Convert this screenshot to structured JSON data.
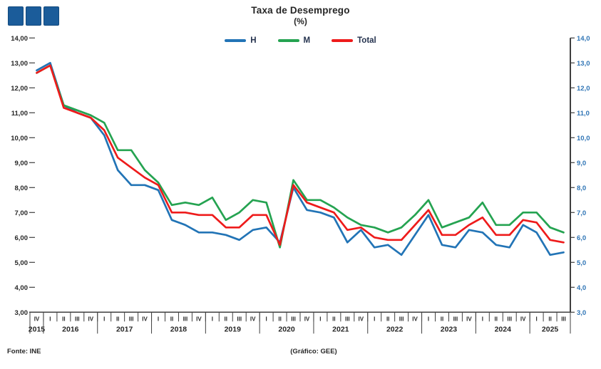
{
  "header": {
    "title": "Taxa de Desemprego",
    "subtitle": "(%)"
  },
  "legend": {
    "items": [
      {
        "label": "H",
        "color": "#2274b6"
      },
      {
        "label": "M",
        "color": "#25a351"
      },
      {
        "label": "Total",
        "color": "#ee1b1b"
      }
    ]
  },
  "footer": {
    "source": "Fonte: INE",
    "credit": "(Gráfico: GEE)"
  },
  "colors": {
    "logo_blue": "#1b5c9a",
    "axis": "#3f3f3f",
    "axis_text": "#262626",
    "right_axis_text": "#2e74b5",
    "series_h": "#2274b6",
    "series_m": "#25a351",
    "series_total": "#ee1b1b"
  },
  "chart_data": {
    "type": "line",
    "title": "Taxa de Desemprego",
    "subtitle": "(%)",
    "legend_position": "top",
    "grid": false,
    "ylim": [
      3,
      14
    ],
    "y_tick_step": 1,
    "y_ticks": [
      14,
      13,
      12,
      11,
      10,
      9,
      8,
      7,
      6,
      5,
      4,
      3
    ],
    "y_tick_labels_left": [
      "14,00",
      "13,00",
      "12,00",
      "11,00",
      "10,00",
      "9,00",
      "8,00",
      "7,00",
      "6,00",
      "5,00",
      "4,00",
      "3,00"
    ],
    "y_tick_labels_right": [
      "14,0",
      "13,0",
      "12,0",
      "11,0",
      "10,0",
      "9,0",
      "8,0",
      "7,0",
      "6,0",
      "5,0",
      "4,0",
      "3,0"
    ],
    "x_year_groups": [
      {
        "year": "2015",
        "quarters": [
          "IV"
        ]
      },
      {
        "year": "2016",
        "quarters": [
          "I",
          "II",
          "III",
          "IV"
        ]
      },
      {
        "year": "2017",
        "quarters": [
          "I",
          "II",
          "III",
          "IV"
        ]
      },
      {
        "year": "2018",
        "quarters": [
          "I",
          "II",
          "III",
          "IV"
        ]
      },
      {
        "year": "2019",
        "quarters": [
          "I",
          "II",
          "III",
          "IV"
        ]
      },
      {
        "year": "2020",
        "quarters": [
          "I",
          "II",
          "III",
          "IV"
        ]
      },
      {
        "year": "2021",
        "quarters": [
          "I",
          "II",
          "III",
          "IV"
        ]
      },
      {
        "year": "2022",
        "quarters": [
          "I",
          "II",
          "III",
          "IV"
        ]
      },
      {
        "year": "2023",
        "quarters": [
          "I",
          "II",
          "III",
          "IV"
        ]
      },
      {
        "year": "2024",
        "quarters": [
          "I",
          "II",
          "III",
          "IV"
        ]
      },
      {
        "year": "2025",
        "quarters": [
          "I",
          "II",
          "III"
        ]
      }
    ],
    "series": [
      {
        "name": "H",
        "color": "#2274b6",
        "values": [
          12.7,
          13.0,
          11.3,
          11.0,
          10.8,
          10.1,
          8.7,
          8.1,
          8.1,
          7.9,
          6.7,
          6.5,
          6.2,
          6.2,
          6.1,
          5.9,
          6.3,
          6.4,
          5.8,
          8.0,
          7.1,
          7.0,
          6.8,
          5.8,
          6.3,
          5.6,
          5.7,
          5.3,
          6.1,
          6.9,
          5.7,
          5.6,
          6.3,
          6.2,
          5.7,
          5.6,
          6.5,
          6.2,
          5.3,
          5.4
        ]
      },
      {
        "name": "M",
        "color": "#25a351",
        "values": [
          12.6,
          12.9,
          11.3,
          11.1,
          10.9,
          10.6,
          9.5,
          9.5,
          8.7,
          8.2,
          7.3,
          7.4,
          7.3,
          7.6,
          6.7,
          7.0,
          7.5,
          7.4,
          5.6,
          8.3,
          7.5,
          7.5,
          7.2,
          6.8,
          6.5,
          6.4,
          6.2,
          6.4,
          6.9,
          7.5,
          6.4,
          6.6,
          6.8,
          7.4,
          6.5,
          6.5,
          7.0,
          7.0,
          6.4,
          6.2
        ]
      },
      {
        "name": "Total",
        "color": "#ee1b1b",
        "values": [
          12.6,
          12.9,
          11.2,
          11.0,
          10.8,
          10.3,
          9.2,
          8.8,
          8.4,
          8.1,
          7.0,
          7.0,
          6.9,
          6.9,
          6.4,
          6.4,
          6.9,
          6.9,
          5.7,
          8.1,
          7.4,
          7.2,
          7.0,
          6.3,
          6.4,
          6.0,
          5.9,
          5.9,
          6.5,
          7.1,
          6.1,
          6.1,
          6.5,
          6.8,
          6.1,
          6.1,
          6.7,
          6.6,
          5.9,
          5.8
        ]
      }
    ]
  }
}
